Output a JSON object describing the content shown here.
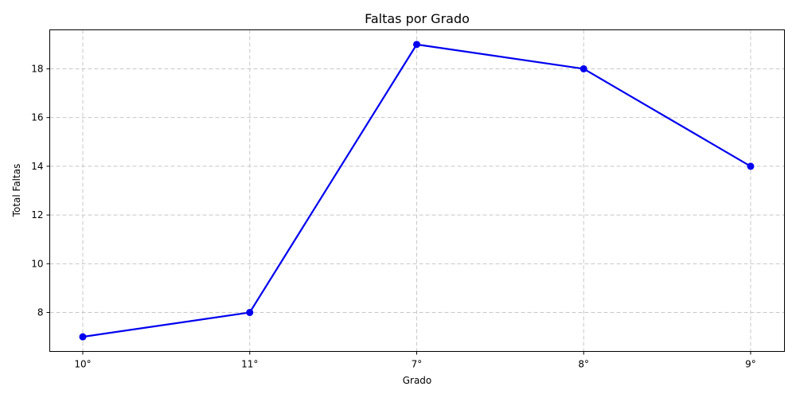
{
  "chart_data": {
    "type": "line",
    "title": "Faltas por Grado",
    "xlabel": "Grado",
    "ylabel": "Total Faltas",
    "categories": [
      "10°",
      "11°",
      "7°",
      "8°",
      "9°"
    ],
    "series": [
      {
        "values": [
          7,
          8,
          19,
          18,
          14
        ],
        "color": "#0000ee",
        "marker": "circle"
      }
    ],
    "ylim": [
      6.4,
      19.6
    ],
    "yticks": [
      8,
      10,
      12,
      14,
      16,
      18
    ],
    "grid": true
  }
}
